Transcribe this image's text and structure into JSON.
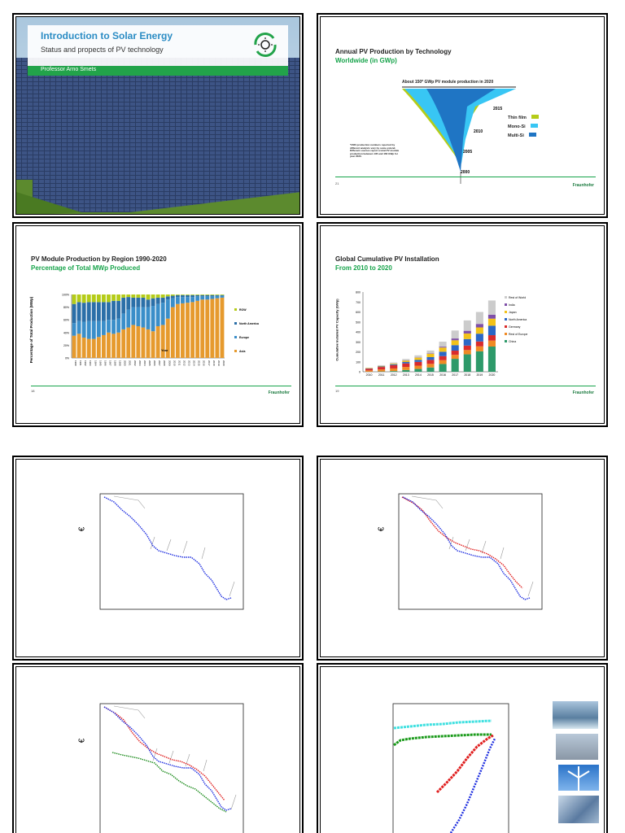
{
  "slide1": {
    "title": "Introduction to Solar Energy",
    "subtitle": "Status and propects of PV technology",
    "presenter": "Professor Arno Smets"
  },
  "slide2": {
    "title": "Annual PV Production by Technology",
    "subtitle": "Worldwide (in GWp)",
    "banner": "About 150* GWp PV module production in 2020",
    "years": [
      "2015",
      "2010",
      "2005",
      "2000"
    ],
    "legend": [
      "Thin film",
      "Mono-Si",
      "Multi-Si"
    ],
    "note": "*2020 production numbers reported by different analysts vary by some extend. Different sources report a total PV module production between 135 and 160 GWp for year 2020.",
    "page_num": "21",
    "logo": "Fraunhofer",
    "colors": {
      "thin_film": "#b5cc18",
      "mono_si": "#38c6f4",
      "multi_si": "#1f75c4"
    }
  },
  "slide3": {
    "title": "PV Module Production by Region 1990-2020",
    "subtitle": "Percentage of Total MWp Produced",
    "ylabel": "Percentage of Total Production (MWp)",
    "xlabel": "Year",
    "yticks": [
      "100%",
      "80%",
      "60%",
      "40%",
      "20%",
      "0%"
    ],
    "legend": [
      "ROW",
      "North America",
      "Europe",
      "Asia"
    ],
    "page_num": "18",
    "logo": "Fraunhofer",
    "chart_data": {
      "type": "bar",
      "stacked": true,
      "categories": [
        "1990",
        "1991",
        "1992",
        "1993",
        "1994",
        "1995",
        "1996",
        "1997",
        "1998",
        "1999",
        "2000",
        "2001",
        "2002",
        "2003",
        "2004",
        "2005",
        "2006",
        "2007",
        "2008",
        "2009",
        "2010",
        "2011",
        "2012",
        "2013",
        "2014",
        "2015",
        "2016",
        "2017",
        "2018",
        "2019",
        "2020"
      ],
      "series": [
        {
          "name": "Asia",
          "values": [
            35,
            38,
            32,
            30,
            30,
            33,
            36,
            40,
            38,
            40,
            45,
            48,
            52,
            50,
            48,
            45,
            42,
            50,
            52,
            62,
            80,
            85,
            86,
            87,
            88,
            90,
            92,
            92,
            93,
            94,
            95
          ]
        },
        {
          "name": "Europe",
          "values": [
            20,
            20,
            25,
            28,
            28,
            25,
            22,
            20,
            22,
            22,
            25,
            28,
            28,
            30,
            32,
            35,
            40,
            35,
            35,
            30,
            14,
            11,
            10,
            9,
            8,
            7,
            5,
            5,
            4,
            4,
            3
          ]
        },
        {
          "name": "North America",
          "values": [
            30,
            30,
            30,
            30,
            30,
            30,
            30,
            28,
            30,
            28,
            25,
            20,
            15,
            15,
            15,
            12,
            12,
            10,
            8,
            5,
            4,
            3,
            3,
            3,
            3,
            2,
            2,
            2,
            2,
            1,
            1
          ]
        },
        {
          "name": "ROW",
          "values": [
            15,
            12,
            13,
            12,
            12,
            12,
            12,
            12,
            10,
            10,
            5,
            4,
            5,
            5,
            5,
            8,
            6,
            5,
            5,
            3,
            2,
            1,
            1,
            1,
            1,
            1,
            1,
            1,
            1,
            1,
            1
          ]
        }
      ],
      "ylim": [
        0,
        100
      ]
    }
  },
  "slide4": {
    "title": "Global Cumulative PV Installation",
    "subtitle": "From 2010 to 2020",
    "ylabel": "Cumulative Installed PV Capacity (GWp)",
    "yticks": [
      "800",
      "700",
      "600",
      "500",
      "400",
      "300",
      "200",
      "100",
      "0"
    ],
    "legend": [
      "Rest of World",
      "India",
      "Japan",
      "North America",
      "Germany",
      "Rest of Europe",
      "China"
    ],
    "page_num": "19",
    "logo": "Fraunhofer",
    "chart_data": {
      "type": "bar",
      "stacked": true,
      "categories": [
        "2010",
        "2011",
        "2012",
        "2013",
        "2014",
        "2015",
        "2016",
        "2017",
        "2018",
        "2019",
        "2020"
      ],
      "series": [
        {
          "name": "China",
          "values": [
            1,
            3,
            7,
            18,
            28,
            43,
            78,
            130,
            175,
            205,
            253
          ]
        },
        {
          "name": "Rest of Europe",
          "values": [
            12,
            20,
            26,
            30,
            33,
            36,
            38,
            40,
            43,
            50,
            60
          ]
        },
        {
          "name": "Germany",
          "values": [
            17,
            25,
            33,
            36,
            38,
            40,
            41,
            42,
            45,
            49,
            54
          ]
        },
        {
          "name": "North America",
          "values": [
            3,
            5,
            9,
            14,
            20,
            28,
            44,
            55,
            65,
            78,
            95
          ]
        },
        {
          "name": "Japan",
          "values": [
            4,
            5,
            7,
            14,
            23,
            34,
            42,
            49,
            56,
            63,
            71
          ]
        },
        {
          "name": "India",
          "values": [
            0,
            1,
            1,
            2,
            3,
            5,
            9,
            18,
            27,
            35,
            40
          ]
        },
        {
          "name": "Rest of World",
          "values": [
            4,
            7,
            10,
            14,
            20,
            27,
            50,
            80,
            104,
            120,
            142
          ]
        }
      ],
      "ylim": [
        0,
        800
      ]
    }
  },
  "slide5": {
    "ylabel": "€"
  },
  "slide6": {
    "ylabel": "€"
  },
  "slide7": {
    "ylabel": "€"
  },
  "slide8": {}
}
